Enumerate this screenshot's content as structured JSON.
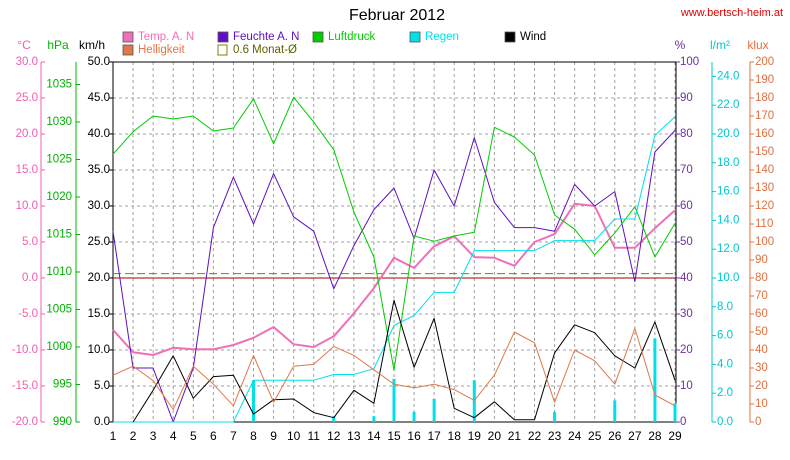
{
  "chart_data": {
    "type": "line",
    "title": "Februar 2012",
    "source": "www.bertsch-heim.at",
    "categories": [
      "1",
      "2",
      "3",
      "4",
      "5",
      "6",
      "7",
      "8",
      "9",
      "10",
      "11",
      "12",
      "13",
      "14",
      "15",
      "16",
      "17",
      "18",
      "19",
      "20",
      "21",
      "22",
      "23",
      "24",
      "25",
      "26",
      "27",
      "28",
      "29"
    ],
    "grid": true,
    "axes": {
      "temp": {
        "unit": "°C",
        "color": "#f060b0",
        "lim": [
          -20,
          30
        ],
        "ticks": [
          {
            "value": -20,
            "label": "-20.0"
          },
          {
            "value": -15,
            "label": "-15.0"
          },
          {
            "value": -10,
            "label": "-10.0"
          },
          {
            "value": -5,
            "label": "-5.0"
          },
          {
            "value": 0,
            "label": "0.0"
          },
          {
            "value": 5,
            "label": "5.0"
          },
          {
            "value": 10,
            "label": "10.0"
          },
          {
            "value": 15,
            "label": "15.0"
          },
          {
            "value": 20,
            "label": "20.0"
          },
          {
            "value": 25,
            "label": "25.0"
          },
          {
            "value": 30,
            "label": "30.0"
          }
        ],
        "zero_line_color": "#a00000"
      },
      "hpa": {
        "unit": "hPa",
        "color": "#00b000",
        "lim": [
          990,
          1038
        ],
        "ticks": [
          990,
          995,
          1000,
          1005,
          1010,
          1015,
          1020,
          1025,
          1030,
          1035
        ]
      },
      "kmh": {
        "unit": "km/h",
        "color": "#000000",
        "lim": [
          0,
          50
        ],
        "ticks": [
          {
            "value": 0,
            "label": "0.0"
          },
          {
            "value": 5,
            "label": "5.0"
          },
          {
            "value": 10,
            "label": "10.0"
          },
          {
            "value": 15,
            "label": "15.0"
          },
          {
            "value": 20,
            "label": "20.0"
          },
          {
            "value": 25,
            "label": "25.0"
          },
          {
            "value": 30,
            "label": "30.0"
          },
          {
            "value": 35,
            "label": "35.0"
          },
          {
            "value": 40,
            "label": "40.0"
          },
          {
            "value": 45,
            "label": "45.0"
          },
          {
            "value": 50,
            "label": "50.0"
          }
        ]
      },
      "pct": {
        "unit": "%",
        "color": "#7030a0",
        "lim": [
          0,
          100
        ],
        "ticks": [
          0,
          10,
          20,
          30,
          40,
          50,
          60,
          70,
          80,
          90,
          100
        ]
      },
      "rain": {
        "unit": "l/m²",
        "color": "#00c8d0",
        "lim": [
          0,
          25
        ],
        "ticks": [
          {
            "value": 0,
            "label": "0.0"
          },
          {
            "value": 2,
            "label": "2.0"
          },
          {
            "value": 4,
            "label": "4.0"
          },
          {
            "value": 6,
            "label": "6.0"
          },
          {
            "value": 8,
            "label": "8.0"
          },
          {
            "value": 10,
            "label": "10.0"
          },
          {
            "value": 12,
            "label": "12.0"
          },
          {
            "value": 14,
            "label": "14.0"
          },
          {
            "value": 16,
            "label": "16.0"
          },
          {
            "value": 18,
            "label": "18.0"
          },
          {
            "value": 20,
            "label": "20.0"
          },
          {
            "value": 22,
            "label": "22.0"
          },
          {
            "value": 24,
            "label": "24.0"
          }
        ]
      },
      "klux": {
        "unit": "klux",
        "color": "#e07040",
        "lim": [
          0,
          200
        ],
        "ticks": [
          0,
          10,
          20,
          30,
          40,
          50,
          60,
          70,
          80,
          90,
          100,
          110,
          120,
          130,
          140,
          150,
          160,
          170,
          180,
          190,
          200
        ]
      }
    },
    "series": [
      {
        "name": "Temp. A. N",
        "axis": "temp",
        "color": "#f070b8",
        "width": 2,
        "values": [
          -7.2,
          -10.3,
          -10.7,
          -9.7,
          -9.9,
          -9.9,
          -9.3,
          -8.3,
          -6.8,
          -9.2,
          -9.6,
          -8.1,
          -4.9,
          -1.4,
          2.8,
          1.4,
          4.4,
          5.8,
          2.9,
          2.8,
          1.7,
          5.0,
          6.1,
          10.3,
          10.0,
          4.2,
          4.2,
          6.9,
          9.4
        ]
      },
      {
        "name": "Feuchte A. N",
        "axis": "pct",
        "color": "#6010c0",
        "width": 1,
        "values": [
          53,
          15,
          15,
          0,
          15,
          54,
          68,
          55,
          69,
          57,
          53,
          37,
          49,
          59,
          65,
          51,
          70,
          60,
          79,
          61,
          54,
          54,
          53,
          66,
          60,
          64,
          39,
          75,
          81
        ]
      },
      {
        "name": "Luftdruck",
        "axis": "hpa",
        "color": "#00cc00",
        "width": 1,
        "values": [
          1025.7,
          1028.7,
          1030.8,
          1030.4,
          1030.8,
          1028.8,
          1029.2,
          1033.1,
          1027.1,
          1033.3,
          1030.0,
          1026.3,
          1018.0,
          1012.0,
          996.9,
          1014.8,
          1014.1,
          1014.8,
          1015.3,
          1029.3,
          1028.0,
          1025.6,
          1017.6,
          1015.7,
          1012.3,
          1015.2,
          1018.7,
          1012.0,
          1016.5
        ]
      },
      {
        "name": "Regen",
        "axis": "rain",
        "color": "#00e0e8",
        "width": 1,
        "values": [
          0,
          0,
          0,
          0,
          0,
          0,
          0,
          2.9,
          2.9,
          2.9,
          2.9,
          3.3,
          3.3,
          3.7,
          6.7,
          7.4,
          9.0,
          9.0,
          11.9,
          11.9,
          11.9,
          11.9,
          12.6,
          12.6,
          12.6,
          14.1,
          14.1,
          19.9,
          21.2
        ],
        "bars": [
          0,
          0,
          0,
          0,
          0,
          0,
          0,
          2.9,
          0,
          0,
          0,
          0.4,
          0,
          0.4,
          3.0,
          0.7,
          1.6,
          0,
          2.9,
          0,
          0,
          0,
          0.7,
          0,
          0,
          1.5,
          0,
          5.8,
          1.3
        ]
      },
      {
        "name": "Wind",
        "axis": "kmh",
        "color": "#000000",
        "width": 1,
        "values": [
          null,
          0,
          4.4,
          9.2,
          3.3,
          6.3,
          6.5,
          1.1,
          3.1,
          3.2,
          1.3,
          0.6,
          4.4,
          2.6,
          16.9,
          7.6,
          14.4,
          1.9,
          0.6,
          2.8,
          0.3,
          0.3,
          9.6,
          13.5,
          12.4,
          9.2,
          7.5,
          13.9,
          5.8
        ]
      },
      {
        "name": "Helligkeit",
        "axis": "klux",
        "color": "#e07848",
        "width": 1,
        "values": [
          26,
          31,
          23,
          7,
          31,
          21,
          9,
          37,
          11,
          31,
          32,
          42,
          37,
          29,
          21,
          19,
          21,
          18,
          12,
          26,
          50,
          44,
          11,
          40,
          34,
          21,
          52,
          15,
          9
        ]
      }
    ],
    "monthly_mean": {
      "name": "0.6 Monat-Ø",
      "axis": "temp",
      "value": 0.6,
      "color": "#808000"
    }
  }
}
